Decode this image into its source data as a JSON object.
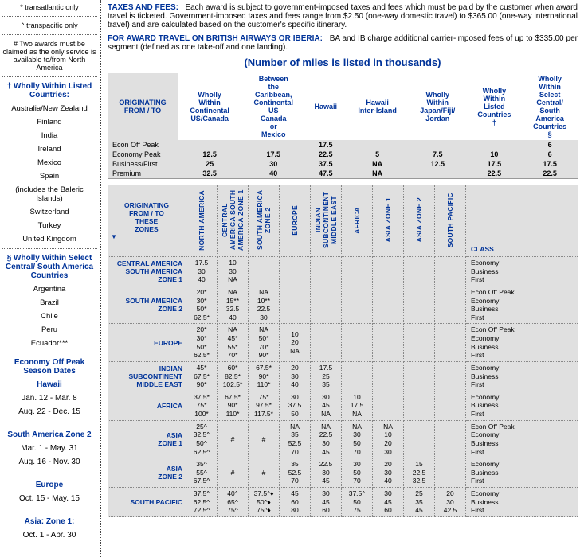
{
  "sidebar": {
    "notes": [
      "* transatlantic only",
      "^ transpacific only",
      "# Two awards must be claimed as the only service is available to/from North America"
    ],
    "listed_head": "† Wholly Within Listed Countries:",
    "listed": [
      "Australia/New Zealand",
      "Finland",
      "India",
      "Ireland",
      "Mexico",
      "Spain",
      "(includes the Baleric Islands)",
      "Switzerland",
      "Turkey",
      "United Kingdom"
    ],
    "select_head": "§ Wholly Within Select Central/ South America Countries",
    "select": [
      "Argentina",
      "Brazil",
      "Chile",
      "Peru",
      "Ecuador***"
    ],
    "season_head": "Economy Off Peak Season Dates",
    "seasons": [
      {
        "name": "Hawaii",
        "lines": [
          "Jan. 12 - Mar. 8",
          "Aug. 22 - Dec. 15"
        ]
      },
      {
        "name": "South America Zone 2",
        "lines": [
          "Mar. 1 - May. 31",
          "Aug. 16 - Nov. 30"
        ]
      },
      {
        "name": "Europe",
        "lines": [
          "Oct. 15 - May. 15"
        ]
      },
      {
        "name": "Asia: Zone 1:",
        "lines": [
          "Oct. 1 - Apr. 30"
        ]
      }
    ]
  },
  "taxes": {
    "label": "TAXES AND FEES:",
    "text": "Each award is subject to government-imposed taxes and fees which must be paid by the customer when award travel is ticketed.  Government-imposed taxes and fees range from $2.50  (one-way domestic travel) to $365.00 (one-way international travel) and are calculated based on the customer's specific itinerary."
  },
  "baiberia": {
    "label": "FOR AWARD TRAVEL ON BRITISH AIRWAYS OR IBERIA:",
    "text": "BA and IB charge additional carrier-imposed fees of up to $335.00 per segment (defined as one take-off and one landing)."
  },
  "subtitle": "(Number of miles is listed in thousands)",
  "table1": {
    "orig": "ORIGINATING FROM / TO",
    "heads": [
      "Wholly Within Continental US/Canada",
      "Between the Caribbean, Continental US Canada or Mexico",
      "Hawaii",
      "Hawaii Inter-Island",
      "Wholly Within Japan/Fiji/ Jordan",
      "Wholly Within Listed Countries †",
      "Wholly Within Select Central/ South America Countries §"
    ],
    "rows": [
      {
        "lbl": "Econ Off Peak",
        "v": [
          "",
          "",
          "17.5",
          "",
          "",
          "",
          "6"
        ]
      },
      {
        "lbl": "Economy Peak",
        "v": [
          "12.5",
          "17.5",
          "22.5",
          "5",
          "7.5",
          "10",
          "6"
        ]
      },
      {
        "lbl": "Business/First",
        "v": [
          "25",
          "30",
          "37.5",
          "NA",
          "12.5",
          "17.5",
          "17.5"
        ]
      },
      {
        "lbl": "Premium",
        "v": [
          "32.5",
          "40",
          "47.5",
          "NA",
          "",
          "22.5",
          "22.5"
        ]
      }
    ]
  },
  "table2": {
    "corner": "ORIGINATING FROM / TO THESE ZONES",
    "zones": [
      "NORTH AMERICA",
      "CENTRAL AMERICA SOUTH AMERICA ZONE 1",
      "SOUTH AMERICA ZONE 2",
      "EUROPE",
      "INDIAN SUBCONTINENT MIDDLE EAST",
      "AFRICA",
      "ASIA ZONE 1",
      "ASIA ZONE 2",
      "SOUTH PACIFIC"
    ],
    "classcol": "CLASS",
    "groups": [
      {
        "head": "CENTRAL AMERICA SOUTH AMERICA ZONE 1",
        "cells": [
          [
            "17.5",
            "30",
            "40"
          ],
          [
            "10",
            "30",
            "NA"
          ],
          null,
          null,
          null,
          null,
          null,
          null,
          null
        ],
        "classes": [
          "Economy",
          "Business",
          "First"
        ]
      },
      {
        "head": "SOUTH AMERICA ZONE 2",
        "cells": [
          [
            "20*",
            "30*",
            "50*",
            "62.5*"
          ],
          [
            "NA",
            "15**",
            "32.5",
            "40"
          ],
          [
            "NA",
            "10**",
            "22.5",
            "30"
          ],
          null,
          null,
          null,
          null,
          null,
          null
        ],
        "classes": [
          "Econ Off Peak",
          "Economy",
          "Business",
          "First"
        ]
      },
      {
        "head": "EUROPE",
        "cells": [
          [
            "20*",
            "30*",
            "50*",
            "62.5*"
          ],
          [
            "NA",
            "45*",
            "55*",
            "70*"
          ],
          [
            "NA",
            "50*",
            "70*",
            "90*"
          ],
          [
            "10",
            "20",
            "NA"
          ],
          null,
          null,
          null,
          null,
          null
        ],
        "classes": [
          "Econ Off Peak",
          "Economy",
          "Business",
          "First"
        ]
      },
      {
        "head": "INDIAN SUBCONTINENT MIDDLE EAST",
        "cells": [
          [
            "45*",
            "67.5*",
            "90*"
          ],
          [
            "60*",
            "82.5*",
            "102.5*"
          ],
          [
            "67.5*",
            "90*",
            "110*"
          ],
          [
            "20",
            "30",
            "40"
          ],
          [
            "17.5",
            "25",
            "35"
          ],
          null,
          null,
          null,
          null
        ],
        "classes": [
          "Economy",
          "Business",
          "First"
        ]
      },
      {
        "head": "AFRICA",
        "cells": [
          [
            "37.5*",
            "75*",
            "100*"
          ],
          [
            "67.5*",
            "90*",
            "110*"
          ],
          [
            "75*",
            "97.5*",
            "117.5*"
          ],
          [
            "30",
            "37.5",
            "50"
          ],
          [
            "30",
            "45",
            "NA"
          ],
          [
            "10",
            "17.5",
            "NA"
          ],
          null,
          null,
          null
        ],
        "classes": [
          "Economy",
          "Business",
          "First"
        ]
      },
      {
        "head": "ASIA ZONE 1",
        "cells": [
          [
            "25^",
            "32.5^",
            "50^",
            "62.5^"
          ],
          [
            "#"
          ],
          [
            "#"
          ],
          [
            "NA",
            "35",
            "52.5",
            "70"
          ],
          [
            "NA",
            "22.5",
            "30",
            "45"
          ],
          [
            "NA",
            "30",
            "50",
            "70"
          ],
          [
            "NA",
            "10",
            "20",
            "30"
          ],
          null,
          null
        ],
        "classes": [
          "Econ Off Peak",
          "Economy",
          "Business",
          "First"
        ]
      },
      {
        "head": "ASIA ZONE 2",
        "cells": [
          [
            "35^",
            "55^",
            "67.5^"
          ],
          [
            "#"
          ],
          [
            "#"
          ],
          [
            "35",
            "52.5",
            "70"
          ],
          [
            "22.5",
            "30",
            "45"
          ],
          [
            "30",
            "50",
            "70"
          ],
          [
            "20",
            "30",
            "40"
          ],
          [
            "15",
            "22.5",
            "32.5"
          ],
          null
        ],
        "classes": [
          "Economy",
          "Business",
          "First"
        ]
      },
      {
        "head": "SOUTH PACIFIC",
        "cells": [
          [
            "37.5^",
            "62.5^",
            "72.5^"
          ],
          [
            "40^",
            "65^",
            "75^"
          ],
          [
            "37.5^♦",
            "50^♦",
            "75^♦"
          ],
          [
            "45",
            "60",
            "80"
          ],
          [
            "30",
            "45",
            "60"
          ],
          [
            "37.5^",
            "50",
            "75"
          ],
          [
            "30",
            "45",
            "60"
          ],
          [
            "25",
            "35",
            "45"
          ],
          [
            "20",
            "30",
            "42.5"
          ]
        ],
        "classes": [
          "Economy",
          "Business",
          "First"
        ]
      }
    ]
  }
}
